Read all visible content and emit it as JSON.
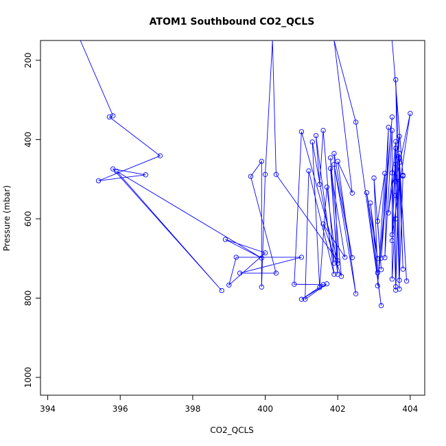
{
  "chart_data": {
    "type": "scatter",
    "title": "ATOM1 Southbound CO2_QCLS",
    "xlabel": "CO2_QCLS",
    "ylabel": "Pressure (mbar)",
    "xlim": [
      393.8,
      404.4
    ],
    "ylim": [
      1045,
      150
    ],
    "y_reversed": true,
    "grid": false,
    "legend": "none",
    "x_ticks": [
      394,
      396,
      398,
      400,
      402,
      404
    ],
    "y_ticks": [
      200,
      400,
      600,
      800,
      1000
    ],
    "series_color": "#0000ff",
    "lines_connected": true,
    "series": [
      {
        "points": [
          [
            394.9,
            150
          ],
          [
            395.8,
            340
          ],
          [
            395.7,
            343
          ],
          [
            397.1,
            441
          ],
          [
            395.4,
            504
          ],
          [
            396.7,
            489
          ],
          [
            395.8,
            474
          ],
          [
            398.8,
            781
          ],
          [
            395.9,
            480
          ],
          [
            399.9,
            699
          ],
          [
            398.9,
            652
          ],
          [
            400.0,
            686
          ],
          [
            399.0,
            767
          ],
          [
            399.2,
            697
          ],
          [
            401.0,
            697
          ],
          [
            399.3,
            737
          ],
          [
            400.3,
            737
          ],
          [
            399.6,
            493
          ],
          [
            399.9,
            455
          ],
          [
            399.9,
            772
          ],
          [
            400.0,
            488
          ],
          [
            400.2,
            150
          ],
          [
            400.3,
            488
          ],
          [
            402.0,
            706
          ],
          [
            401.0,
            380
          ],
          [
            400.8,
            765
          ],
          [
            401.6,
            766
          ],
          [
            401.0,
            803
          ],
          [
            401.7,
            764
          ],
          [
            401.1,
            803
          ],
          [
            401.2,
            479
          ],
          [
            401.9,
            740
          ],
          [
            401.4,
            390
          ],
          [
            401.5,
            513
          ],
          [
            401.6,
            377
          ],
          [
            401.9,
            712
          ],
          [
            401.3,
            406
          ],
          [
            401.5,
            773
          ],
          [
            401.7,
            520
          ],
          [
            402.0,
            740
          ],
          [
            401.8,
            446
          ],
          [
            402.1,
            745
          ],
          [
            401.6,
            613
          ],
          [
            402.2,
            697
          ],
          [
            401.8,
            473
          ],
          [
            402.0,
            712
          ],
          [
            401.9,
            435
          ],
          [
            402.4,
            698
          ],
          [
            401.9,
            463
          ],
          [
            402.5,
            789
          ],
          [
            402.0,
            455
          ],
          [
            402.4,
            535
          ],
          [
            401.9,
            150
          ],
          [
            402.5,
            356
          ],
          [
            403.2,
            819
          ],
          [
            402.8,
            534
          ],
          [
            403.1,
            700
          ],
          [
            402.9,
            560
          ],
          [
            403.1,
            736
          ],
          [
            403.0,
            497
          ],
          [
            403.2,
            728
          ],
          [
            403.1,
            606
          ],
          [
            403.3,
            485
          ],
          [
            403.1,
            769
          ],
          [
            403.5,
            343
          ],
          [
            403.2,
            699
          ],
          [
            403.4,
            369
          ],
          [
            403.3,
            698
          ],
          [
            403.5,
            377
          ],
          [
            403.5,
            752
          ],
          [
            403.7,
            392
          ],
          [
            403.4,
            585
          ],
          [
            403.6,
            405
          ],
          [
            403.5,
            655
          ],
          [
            403.5,
            484
          ],
          [
            403.6,
            771
          ],
          [
            403.6,
            422
          ],
          [
            403.7,
            777
          ],
          [
            403.6,
            249
          ],
          [
            403.8,
            727
          ],
          [
            403.7,
            435
          ],
          [
            403.6,
            780
          ],
          [
            403.7,
            458
          ],
          [
            403.9,
            757
          ],
          [
            403.7,
            447
          ],
          [
            403.7,
            755
          ],
          [
            403.8,
            490
          ],
          [
            403.5,
            150
          ],
          [
            403.8,
            492
          ],
          [
            403.6,
            505
          ],
          [
            404.0,
            334
          ],
          [
            403.5,
            640
          ],
          [
            403.6,
            462
          ],
          [
            403.6,
            541
          ],
          [
            403.6,
            600
          ]
        ]
      }
    ]
  }
}
